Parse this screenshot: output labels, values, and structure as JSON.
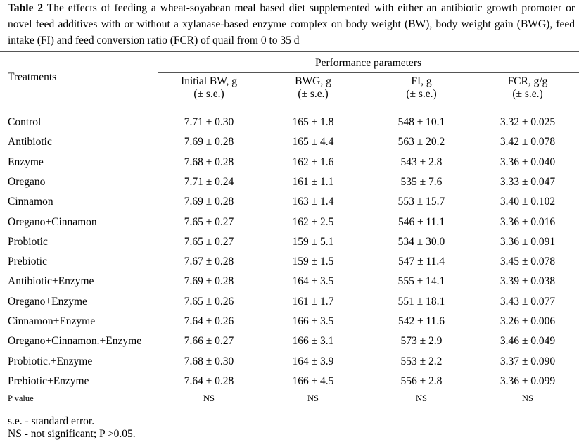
{
  "caption": {
    "label": "Table 2",
    "text": "The effects of feeding a wheat-soyabean meal based diet supplemented with either an antibiotic growth promoter or novel feed additives with or without a xylanase-based enzyme complex on body weight (BW), body weight gain (BWG), feed intake (FI) and feed conversion ratio (FCR) of quail from 0 to 35 d"
  },
  "header": {
    "treatments": "Treatments",
    "group": "Performance parameters",
    "columns": [
      {
        "name": "Initial BW, g",
        "unit": "(± s.e.)"
      },
      {
        "name": "BWG, g",
        "unit": "(± s.e.)"
      },
      {
        "name": "FI, g",
        "unit": "(± s.e.)"
      },
      {
        "name": "FCR, g/g",
        "unit": "(± s.e.)"
      }
    ]
  },
  "rows": [
    {
      "treatment": "Control",
      "bw": "7.71 ± 0.30",
      "bwg": "165 ± 1.8",
      "fi": "548 ± 10.1",
      "fcr": "3.32 ± 0.025"
    },
    {
      "treatment": "Antibiotic",
      "bw": "7.69 ± 0.28",
      "bwg": "165 ± 4.4",
      "fi": "563 ± 20.2",
      "fcr": "3.42 ± 0.078"
    },
    {
      "treatment": "Enzyme",
      "bw": "7.68 ± 0.28",
      "bwg": "162 ± 1.6",
      "fi": "543 ± 2.8",
      "fcr": "3.36 ± 0.040"
    },
    {
      "treatment": "Oregano",
      "bw": "7.71 ± 0.24",
      "bwg": "161 ± 1.1",
      "fi": "535 ± 7.6",
      "fcr": "3.33 ± 0.047"
    },
    {
      "treatment": "Cinnamon",
      "bw": "7.69 ± 0.28",
      "bwg": "163 ± 1.4",
      "fi": "553 ± 15.7",
      "fcr": "3.40 ± 0.102"
    },
    {
      "treatment": "Oregano+Cinnamon",
      "bw": "7.65 ± 0.27",
      "bwg": "162 ± 2.5",
      "fi": "546 ± 11.1",
      "fcr": "3.36 ± 0.016"
    },
    {
      "treatment": "Probiotic",
      "bw": "7.65 ± 0.27",
      "bwg": "159 ± 5.1",
      "fi": "534 ± 30.0",
      "fcr": "3.36 ± 0.091"
    },
    {
      "treatment": "Prebiotic",
      "bw": "7.67 ± 0.28",
      "bwg": "159 ± 1.5",
      "fi": "547 ± 11.4",
      "fcr": "3.45 ± 0.078"
    },
    {
      "treatment": "Antibiotic+Enzyme",
      "bw": "7.69 ± 0.28",
      "bwg": "164 ± 3.5",
      "fi": "555 ± 14.1",
      "fcr": "3.39 ± 0.038"
    },
    {
      "treatment": "Oregano+Enzyme",
      "bw": "7.65 ± 0.26",
      "bwg": "161 ± 1.7",
      "fi": "551 ± 18.1",
      "fcr": "3.43 ± 0.077"
    },
    {
      "treatment": "Cinnamon+Enzyme",
      "bw": "7.64 ± 0.26",
      "bwg": "166 ± 3.5",
      "fi": "542 ± 11.6",
      "fcr": "3.26 ± 0.006"
    },
    {
      "treatment": "Oregano+Cinnamon.+Enzyme",
      "bw": "7.66 ± 0.27",
      "bwg": "166 ± 3.1",
      "fi": "573 ± 2.9",
      "fcr": "3.46 ± 0.049"
    },
    {
      "treatment": "Probiotic.+Enzyme",
      "bw": "7.68 ± 0.30",
      "bwg": "164 ± 3.9",
      "fi": "553 ± 2.2",
      "fcr": "3.37 ± 0.090"
    },
    {
      "treatment": "Prebiotic+Enzyme",
      "bw": "7.64 ± 0.28",
      "bwg": "166 ± 4.5",
      "fi": "556 ± 2.8",
      "fcr": "3.36 ± 0.099"
    }
  ],
  "pvalue": {
    "label": "P value",
    "bw": "NS",
    "bwg": "NS",
    "fi": "NS",
    "fcr": "NS"
  },
  "footnotes": [
    "s.e. - standard error.",
    "NS - not significant; P >0.05."
  ]
}
